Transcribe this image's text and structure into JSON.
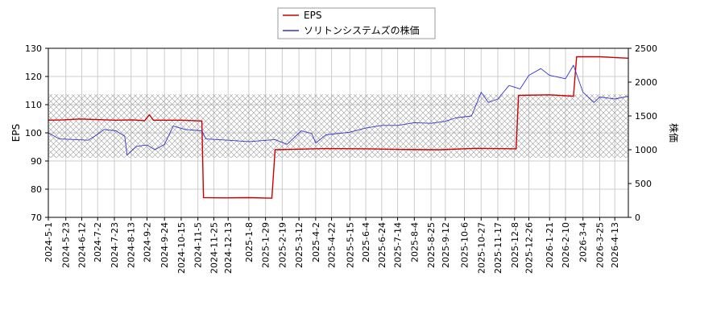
{
  "chart_data": {
    "type": "line",
    "title": "",
    "xlabel": "",
    "ylabel_left": "EPS",
    "ylabel_right": "株価",
    "grid": true,
    "legend_position": "top-center",
    "ylim_left": [
      70,
      130
    ],
    "ylim_right": [
      0,
      2500
    ],
    "yticks_left": [
      "70",
      "80",
      "90",
      "100",
      "110",
      "120",
      "130"
    ],
    "yticks_right": [
      "0",
      "500",
      "1000",
      "1500",
      "2000",
      "2500"
    ],
    "x_start": "2024-5-1",
    "x_end": "2026-4-30",
    "xticks": [
      "2024-5-1",
      "2024-5-23",
      "2024-6-12",
      "2024-7-2",
      "2024-7-23",
      "2024-8-13",
      "2024-9-2",
      "2024-9-24",
      "2024-10-15",
      "2024-11-5",
      "2024-11-25",
      "2024-12-13",
      "2025-1-8",
      "2025-1-29",
      "2025-2-19",
      "2025-3-12",
      "2025-4-2",
      "2025-4-22",
      "2025-5-15",
      "2025-6-4",
      "2025-6-24",
      "2025-7-14",
      "2025-8-4",
      "2025-8-25",
      "2025-9-12",
      "2025-10-6",
      "2025-10-27",
      "2025-11-17",
      "2025-12-8",
      "2025-12-26",
      "2026-1-21",
      "2026-2-10",
      "2026-3-4",
      "2026-3-25",
      "2026-4-13"
    ],
    "hatch_band_right": [
      880,
      1820
    ],
    "series": [
      {
        "name": "EPS",
        "color": "#cc0000",
        "axis": "left",
        "points": [
          [
            "2024-5-1",
            104.5
          ],
          [
            "2024-5-20",
            104.6
          ],
          [
            "2024-6-10",
            104.9
          ],
          [
            "2024-7-1",
            104.7
          ],
          [
            "2024-7-25",
            104.5
          ],
          [
            "2024-8-15",
            104.6
          ],
          [
            "2024-8-30",
            104.3
          ],
          [
            "2024-9-5",
            106.4
          ],
          [
            "2024-9-10",
            104.5
          ],
          [
            "2024-10-15",
            104.5
          ],
          [
            "2024-11-10",
            104.2
          ],
          [
            "2024-11-12",
            77.0
          ],
          [
            "2024-12-10",
            76.9
          ],
          [
            "2025-1-8",
            77.0
          ],
          [
            "2025-2-6",
            76.8
          ],
          [
            "2025-2-10",
            94.0
          ],
          [
            "2025-3-12",
            94.2
          ],
          [
            "2025-4-15",
            94.4
          ],
          [
            "2025-6-10",
            94.3
          ],
          [
            "2025-7-20",
            94.1
          ],
          [
            "2025-9-5",
            94.0
          ],
          [
            "2025-10-20",
            94.5
          ],
          [
            "2025-12-10",
            94.3
          ],
          [
            "2025-12-13",
            113.3
          ],
          [
            "2026-1-21",
            113.5
          ],
          [
            "2026-2-20",
            113.0
          ],
          [
            "2026-2-24",
            127.0
          ],
          [
            "2026-3-25",
            127.0
          ],
          [
            "2026-4-30",
            126.5
          ]
        ]
      },
      {
        "name": "ソリトンシステムズの株価",
        "color": "#3333cc",
        "axis": "right",
        "points": [
          [
            "2024-5-1",
            1250
          ],
          [
            "2024-5-15",
            1160
          ],
          [
            "2024-6-5",
            1150
          ],
          [
            "2024-6-20",
            1140
          ],
          [
            "2024-7-1",
            1220
          ],
          [
            "2024-7-10",
            1300
          ],
          [
            "2024-7-25",
            1280
          ],
          [
            "2024-8-5",
            1200
          ],
          [
            "2024-8-8",
            920
          ],
          [
            "2024-8-20",
            1050
          ],
          [
            "2024-9-2",
            1070
          ],
          [
            "2024-9-12",
            1000
          ],
          [
            "2024-9-24",
            1080
          ],
          [
            "2024-10-5",
            1350
          ],
          [
            "2024-10-20",
            1300
          ],
          [
            "2024-11-10",
            1280
          ],
          [
            "2024-11-15",
            1160
          ],
          [
            "2024-12-13",
            1140
          ],
          [
            "2025-1-8",
            1120
          ],
          [
            "2025-2-10",
            1150
          ],
          [
            "2025-2-25",
            1080
          ],
          [
            "2025-3-15",
            1280
          ],
          [
            "2025-3-28",
            1240
          ],
          [
            "2025-4-2",
            1100
          ],
          [
            "2025-4-15",
            1220
          ],
          [
            "2025-5-15",
            1260
          ],
          [
            "2025-6-4",
            1320
          ],
          [
            "2025-6-24",
            1360
          ],
          [
            "2025-7-14",
            1360
          ],
          [
            "2025-8-4",
            1400
          ],
          [
            "2025-8-25",
            1390
          ],
          [
            "2025-9-12",
            1420
          ],
          [
            "2025-9-25",
            1470
          ],
          [
            "2025-10-15",
            1500
          ],
          [
            "2025-10-27",
            1850
          ],
          [
            "2025-11-5",
            1700
          ],
          [
            "2025-11-17",
            1750
          ],
          [
            "2025-12-1",
            1950
          ],
          [
            "2025-12-15",
            1900
          ],
          [
            "2025-12-26",
            2100
          ],
          [
            "2026-1-10",
            2200
          ],
          [
            "2026-1-21",
            2100
          ],
          [
            "2026-2-10",
            2050
          ],
          [
            "2026-2-20",
            2250
          ],
          [
            "2026-3-4",
            1850
          ],
          [
            "2026-3-18",
            1700
          ],
          [
            "2026-3-25",
            1780
          ],
          [
            "2026-4-13",
            1750
          ],
          [
            "2026-4-30",
            1790
          ]
        ]
      }
    ]
  }
}
